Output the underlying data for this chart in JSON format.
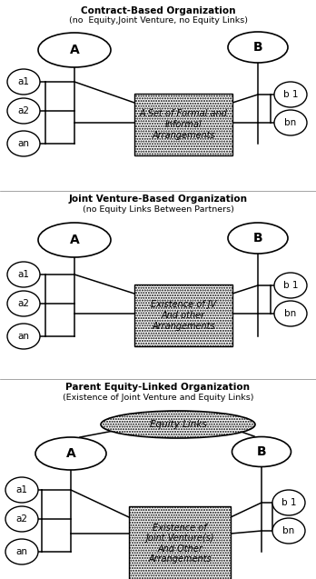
{
  "title1": "Contract-Based Organization",
  "subtitle1": "(no  Equity,Joint Venture, no Equity Links)",
  "title2": "Joint Venture-Based Organization",
  "subtitle2": "(no Equity Links Between Partners)",
  "title3": "Parent Equity-Linked Organization",
  "subtitle3": "(Existence of Joint Venture and Equity Links)",
  "box1_text": "A Set of Formal and\nInformal\nArrangements",
  "box2_text": "Existence of JV\nAnd other\nArrangements",
  "box3_text": "Existence of\nJoint Venture(s)\nAnd Other\nArrangements",
  "equity_link_text": "Equity Links",
  "bg_color": "#ffffff"
}
